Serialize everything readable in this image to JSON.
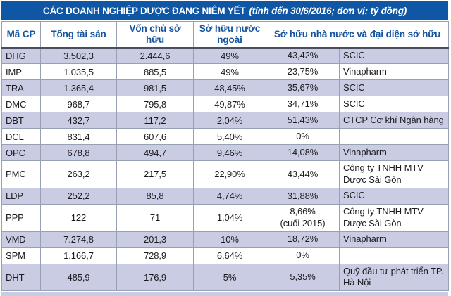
{
  "chart_data": {
    "type": "table",
    "title": "CÁC DOANH NGHIỆP DƯỢC ĐANG NIÊM YẾT",
    "subtitle": "(tính đến 30/6/2016; đơn vị: tỷ đồng)",
    "columns": [
      "Mã CP",
      "Tổng tài sản",
      "Vốn chủ sở hữu",
      "Sở hữu nước ngoài",
      "Sở hữu nhà nước và đại diện sở hữu"
    ],
    "rows": [
      {
        "code": "DHG",
        "total_assets": "3.502,3",
        "equity": "2.444,6",
        "foreign_ownership": "49%",
        "state_ownership": "43,42%",
        "state_representative": "SCIC"
      },
      {
        "code": "IMP",
        "total_assets": "1.035,5",
        "equity": "885,5",
        "foreign_ownership": "49%",
        "state_ownership": "23,75%",
        "state_representative": "Vinapharm"
      },
      {
        "code": "TRA",
        "total_assets": "1.365,4",
        "equity": "981,5",
        "foreign_ownership": "48,45%",
        "state_ownership": "35,67%",
        "state_representative": "SCIC"
      },
      {
        "code": "DMC",
        "total_assets": "968,7",
        "equity": "795,8",
        "foreign_ownership": "49,87%",
        "state_ownership": "34,71%",
        "state_representative": "SCIC"
      },
      {
        "code": "DBT",
        "total_assets": "432,7",
        "equity": "117,2",
        "foreign_ownership": "2,04%",
        "state_ownership": "51,43%",
        "state_representative": "CTCP Cơ khí Ngân hàng"
      },
      {
        "code": "DCL",
        "total_assets": "831,4",
        "equity": "607,6",
        "foreign_ownership": "5,40%",
        "state_ownership": "0%",
        "state_representative": ""
      },
      {
        "code": "OPC",
        "total_assets": "678,8",
        "equity": "494,7",
        "foreign_ownership": "9,46%",
        "state_ownership": "14,08%",
        "state_representative": "Vinapharm"
      },
      {
        "code": "PMC",
        "total_assets": "263,2",
        "equity": "217,5",
        "foreign_ownership": "22,90%",
        "state_ownership": "43,44%",
        "state_representative": "Công ty TNHH MTV Dược Sài Gòn"
      },
      {
        "code": "LDP",
        "total_assets": "252,2",
        "equity": "85,8",
        "foreign_ownership": "4,74%",
        "state_ownership": "31,88%",
        "state_representative": "SCIC"
      },
      {
        "code": "PPP",
        "total_assets": "122",
        "equity": "71",
        "foreign_ownership": "1,04%",
        "state_ownership": "8,66%\n(cuối 2015)",
        "state_representative": "Công ty TNHH MTV Dược Sài Gòn"
      },
      {
        "code": "VMD",
        "total_assets": "7.274,8",
        "equity": "201,3",
        "foreign_ownership": "10%",
        "state_ownership": "18,72%",
        "state_representative": "Vinapharm"
      },
      {
        "code": "SPM",
        "total_assets": "1.166,7",
        "equity": "728,9",
        "foreign_ownership": "6,64%",
        "state_ownership": "0%",
        "state_representative": ""
      },
      {
        "code": "DHT",
        "total_assets": "485,9",
        "equity": "176,9",
        "foreign_ownership": "5%",
        "state_ownership": "5,35%",
        "state_representative": "Quỹ đầu tư phát triển TP. Hà Nội"
      }
    ]
  },
  "colors": {
    "title_bar": "#0f57a5",
    "header_text": "#15539e",
    "row_alt": "#c9cce3",
    "border": "#98a0b4",
    "body_text": "#1b1b1f"
  }
}
